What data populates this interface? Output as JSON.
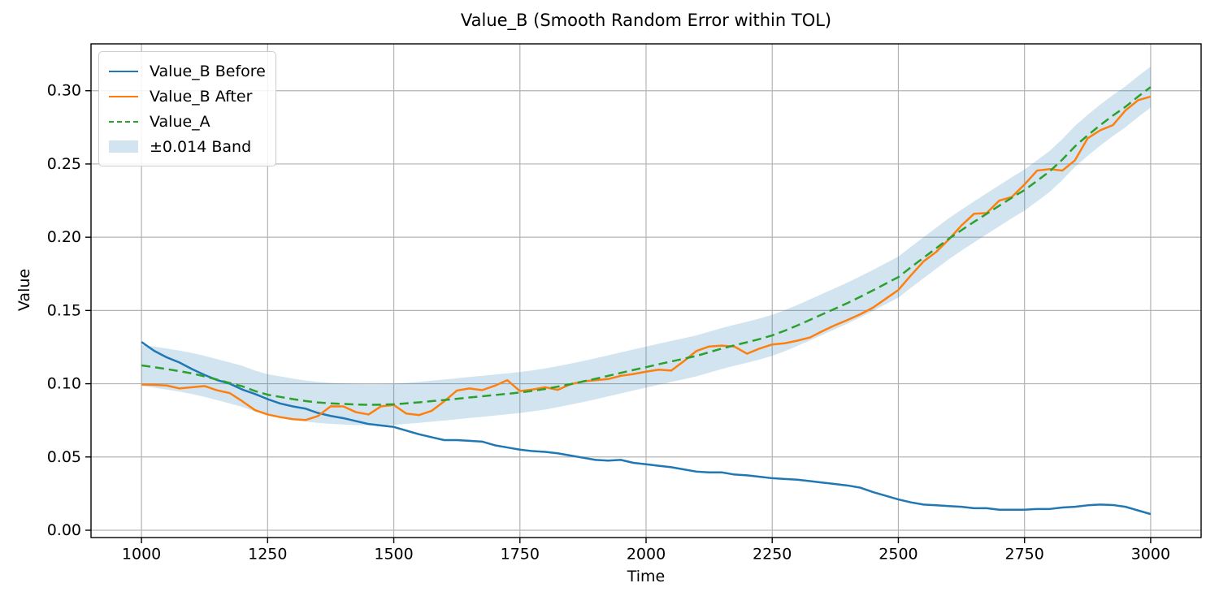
{
  "title": "Value_B (Smooth Random Error within TOL)",
  "chart_data": {
    "type": "line",
    "title": "Value_B (Smooth Random Error within TOL)",
    "xlabel": "Time",
    "ylabel": "Value",
    "xlim": [
      900,
      3100
    ],
    "ylim": [
      -0.005,
      0.332
    ],
    "xticks": [
      1000,
      1250,
      1500,
      1750,
      2000,
      2250,
      2500,
      2750,
      3000
    ],
    "yticks": [
      0.0,
      0.05,
      0.1,
      0.15,
      0.2,
      0.25,
      0.3
    ],
    "grid": true,
    "grid_color": "#b3b3b3",
    "legend_position": "upper left",
    "x": [
      1000,
      1025,
      1050,
      1075,
      1100,
      1125,
      1150,
      1175,
      1200,
      1225,
      1250,
      1275,
      1300,
      1325,
      1350,
      1375,
      1400,
      1425,
      1450,
      1475,
      1500,
      1525,
      1550,
      1575,
      1600,
      1625,
      1650,
      1675,
      1700,
      1725,
      1750,
      1775,
      1800,
      1825,
      1850,
      1875,
      1900,
      1925,
      1950,
      1975,
      2000,
      2025,
      2050,
      2075,
      2100,
      2125,
      2150,
      2175,
      2200,
      2225,
      2250,
      2275,
      2300,
      2325,
      2350,
      2375,
      2400,
      2425,
      2450,
      2475,
      2500,
      2525,
      2550,
      2575,
      2600,
      2625,
      2650,
      2675,
      2700,
      2725,
      2750,
      2775,
      2800,
      2825,
      2850,
      2875,
      2900,
      2925,
      2950,
      2975,
      3000
    ],
    "series": [
      {
        "name": "Value_B Before",
        "color": "#1f77b4",
        "style": "solid",
        "values": [
          0.1285,
          0.1225,
          0.118,
          0.1145,
          0.11,
          0.106,
          0.1025,
          0.1,
          0.096,
          0.093,
          0.0895,
          0.0865,
          0.0845,
          0.083,
          0.08,
          0.078,
          0.0765,
          0.0745,
          0.0725,
          0.0715,
          0.0705,
          0.068,
          0.0655,
          0.0635,
          0.0615,
          0.0615,
          0.061,
          0.0605,
          0.058,
          0.0565,
          0.055,
          0.054,
          0.0535,
          0.0525,
          0.051,
          0.0495,
          0.048,
          0.0475,
          0.048,
          0.046,
          0.045,
          0.044,
          0.043,
          0.0415,
          0.04,
          0.0395,
          0.0395,
          0.038,
          0.0375,
          0.0365,
          0.0355,
          0.035,
          0.0345,
          0.0335,
          0.0325,
          0.0315,
          0.0305,
          0.029,
          0.026,
          0.0235,
          0.021,
          0.019,
          0.0175,
          0.017,
          0.0165,
          0.016,
          0.015,
          0.015,
          0.014,
          0.014,
          0.014,
          0.0145,
          0.0145,
          0.0155,
          0.016,
          0.017,
          0.0175,
          0.0172,
          0.016,
          0.0135,
          0.011
        ]
      },
      {
        "name": "Value_B After",
        "color": "#ff7f0e",
        "style": "solid",
        "values": [
          0.0995,
          0.0993,
          0.0988,
          0.0968,
          0.0976,
          0.0984,
          0.0955,
          0.0936,
          0.088,
          0.082,
          0.079,
          0.0772,
          0.0758,
          0.0752,
          0.078,
          0.0846,
          0.0845,
          0.0806,
          0.079,
          0.0846,
          0.0855,
          0.0796,
          0.0786,
          0.0815,
          0.088,
          0.0953,
          0.0968,
          0.0956,
          0.0986,
          0.1024,
          0.095,
          0.096,
          0.0976,
          0.0958,
          0.0996,
          0.1016,
          0.1024,
          0.1032,
          0.1054,
          0.1066,
          0.1082,
          0.1096,
          0.109,
          0.1154,
          0.1224,
          0.1254,
          0.126,
          0.1254,
          0.1205,
          0.124,
          0.1268,
          0.1276,
          0.1294,
          0.1316,
          0.136,
          0.14,
          0.1436,
          0.1475,
          0.152,
          0.158,
          0.164,
          0.174,
          0.1835,
          0.19,
          0.1985,
          0.208,
          0.216,
          0.2165,
          0.225,
          0.2275,
          0.236,
          0.2455,
          0.2465,
          0.2455,
          0.2525,
          0.2675,
          0.273,
          0.2765,
          0.2865,
          0.2935,
          0.296
        ]
      },
      {
        "name": "Value_A",
        "color": "#2ca02c",
        "style": "dashed",
        "values": [
          0.1125,
          0.1113,
          0.11,
          0.1086,
          0.107,
          0.105,
          0.1028,
          0.1005,
          0.0982,
          0.095,
          0.0925,
          0.091,
          0.0895,
          0.0882,
          0.0872,
          0.0866,
          0.0862,
          0.0858,
          0.0856,
          0.0857,
          0.086,
          0.0866,
          0.0873,
          0.0881,
          0.0889,
          0.0897,
          0.0906,
          0.0914,
          0.0923,
          0.0931,
          0.094,
          0.0951,
          0.0964,
          0.098,
          0.0997,
          0.1015,
          0.1034,
          0.1054,
          0.1074,
          0.1094,
          0.1113,
          0.1133,
          0.1152,
          0.1171,
          0.119,
          0.1215,
          0.124,
          0.1262,
          0.1283,
          0.1305,
          0.133,
          0.1362,
          0.1398,
          0.1436,
          0.1475,
          0.1513,
          0.1552,
          0.1594,
          0.1638,
          0.1683,
          0.1728,
          0.1795,
          0.186,
          0.1925,
          0.199,
          0.2048,
          0.2105,
          0.216,
          0.2215,
          0.227,
          0.2322,
          0.2385,
          0.245,
          0.253,
          0.262,
          0.2695,
          0.2765,
          0.283,
          0.289,
          0.296,
          0.3025
        ]
      },
      {
        "name": "±0.014 Band",
        "type": "band",
        "base_series": "Value_A",
        "half_width": 0.014,
        "color": "#1f77b4",
        "opacity": 0.2
      }
    ]
  }
}
